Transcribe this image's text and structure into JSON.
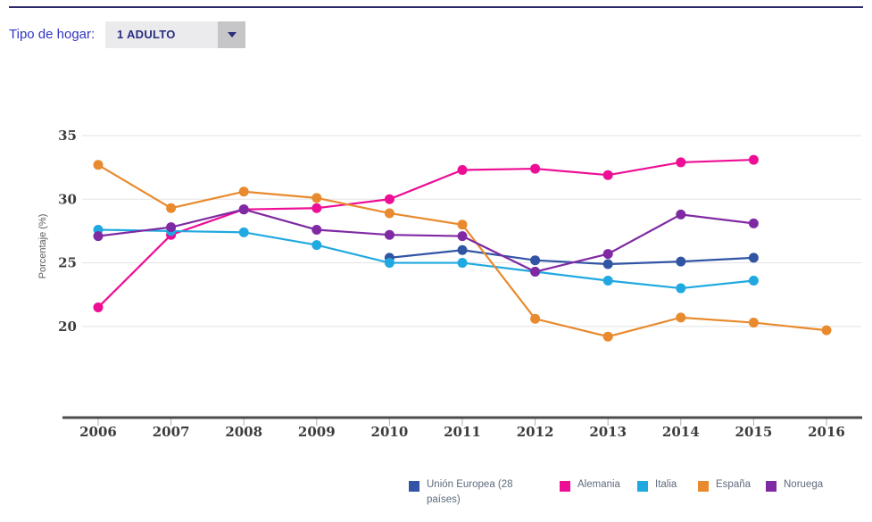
{
  "header": {
    "filter_label": "Tipo de hogar:",
    "dropdown_value": "1 ADULTO",
    "dropdown_arrow_icon": "caret-down",
    "accent_color": "#3136c3",
    "top_rule_color": "#2b2a6b"
  },
  "chart_data": {
    "type": "line",
    "title": "",
    "xlabel": "",
    "ylabel": "Porcentaje (%)",
    "x": [
      2006,
      2007,
      2008,
      2009,
      2010,
      2011,
      2012,
      2013,
      2014,
      2015,
      2016
    ],
    "yticks": [
      35,
      30,
      25,
      20
    ],
    "ylim": [
      13,
      36
    ],
    "grid": true,
    "legend_position": "bottom",
    "series": [
      {
        "name": "Unión Europea (28 países)",
        "color": "#3155a4",
        "values": [
          null,
          null,
          null,
          null,
          25.4,
          26.0,
          25.2,
          24.9,
          25.1,
          25.4,
          null
        ]
      },
      {
        "name": "Alemania",
        "color": "#ee0d95",
        "values": [
          21.5,
          27.2,
          29.2,
          29.3,
          30.0,
          32.3,
          32.4,
          31.9,
          32.9,
          33.1,
          null
        ]
      },
      {
        "name": "Italia",
        "color": "#20a9e0",
        "values": [
          27.6,
          27.5,
          27.4,
          26.4,
          25.0,
          25.0,
          24.3,
          23.6,
          23.0,
          23.6,
          null
        ]
      },
      {
        "name": "España",
        "color": "#e88a2d",
        "values": [
          32.7,
          29.3,
          30.6,
          30.1,
          28.9,
          28.0,
          20.6,
          19.2,
          20.7,
          20.3,
          19.7
        ]
      },
      {
        "name": "Noruega",
        "color": "#7f2aa3",
        "values": [
          27.1,
          27.8,
          29.2,
          27.6,
          27.2,
          27.1,
          24.3,
          25.7,
          28.8,
          28.1,
          null
        ]
      }
    ]
  }
}
